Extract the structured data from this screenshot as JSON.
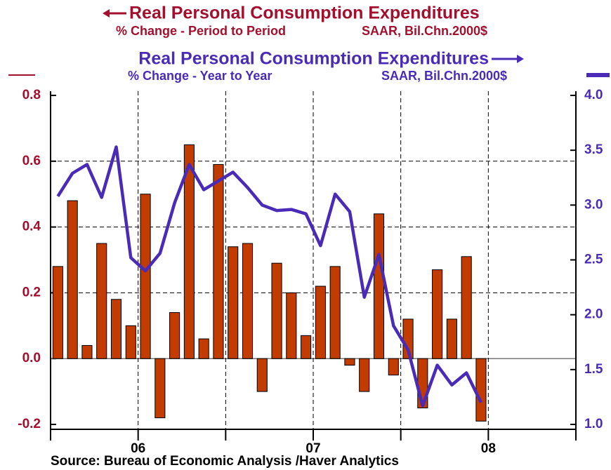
{
  "chart_data": {
    "type": "bar",
    "series": [
      {
        "name": "Real Personal Consumption Expenditures",
        "subtitle": "% Change - Period to Period",
        "units": "SAAR, Bil.Chn.2000$",
        "type": "bar",
        "color": "#c23c00",
        "values": [
          0.28,
          0.48,
          0.04,
          0.35,
          0.18,
          0.1,
          0.5,
          -0.18,
          0.14,
          0.65,
          0.06,
          0.59,
          0.34,
          0.35,
          -0.1,
          0.29,
          0.2,
          0.07,
          0.22,
          0.28,
          -0.02,
          -0.1,
          0.44,
          -0.05,
          0.12,
          -0.15,
          0.27,
          0.12,
          0.31,
          -0.19
        ]
      },
      {
        "name": "Real Personal Consumption Expenditures",
        "subtitle": "% Change - Year to Year",
        "units": "SAAR, Bil.Chn.2000$",
        "type": "line",
        "axis": "y2",
        "color": "#4a2bb8",
        "values": [
          3.08,
          3.29,
          3.37,
          3.07,
          3.53,
          2.52,
          2.4,
          2.56,
          3.02,
          3.37,
          3.14,
          3.22,
          3.3,
          3.16,
          3.0,
          2.95,
          2.96,
          2.92,
          2.63,
          3.1,
          2.94,
          2.16,
          2.55,
          1.9,
          1.68,
          1.17,
          1.54,
          1.36,
          1.47,
          1.2
        ]
      }
    ],
    "x": [
      0.5,
      1.5,
      2.5,
      3.5,
      4.5,
      5.5,
      6.5,
      7.5,
      8.5,
      9.5,
      10.5,
      11.5,
      12.5,
      13.5,
      14.5,
      15.5,
      16.5,
      17.5,
      18.5,
      19.5,
      20.5,
      21.5,
      22.5,
      23.5,
      24.5,
      25.5,
      26.5,
      27.5,
      28.5,
      29.5
    ],
    "xlim": [
      0,
      36
    ],
    "xticks": [
      {
        "value": 0,
        "label": null
      },
      {
        "value": 6,
        "label": "06"
      },
      {
        "value": 12,
        "label": null
      },
      {
        "value": 18,
        "label": "07"
      },
      {
        "value": 24,
        "label": null
      },
      {
        "value": 30,
        "label": "08"
      },
      {
        "value": 36,
        "label": null
      }
    ],
    "ylim": [
      -0.2,
      0.8
    ],
    "yticks": [
      -0.2,
      {
        "value": 0,
        "label": "0.0"
      },
      0.2,
      0.4,
      0.6,
      0.8
    ],
    "y2lim": [
      1.0,
      4.0
    ],
    "y2ticks": [
      {
        "value": 1,
        "label": "1.0"
      },
      1.5,
      {
        "value": 2,
        "label": "2.0"
      },
      2.5,
      {
        "value": 3,
        "label": "3.0"
      },
      3.5,
      {
        "value": 4,
        "label": "4.0"
      }
    ],
    "grid": true,
    "source": "Source:  Bureau of Economic Analysis /Haver Analytics"
  }
}
